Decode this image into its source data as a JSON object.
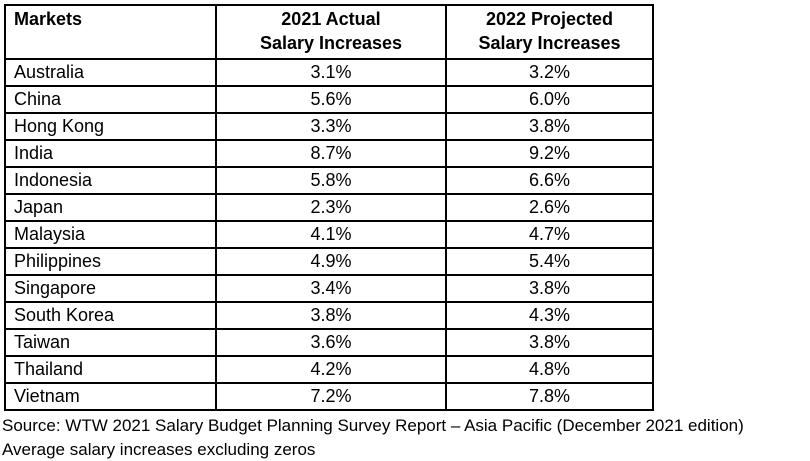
{
  "table": {
    "header": {
      "markets": "Markets",
      "col_2021_line1": "2021 Actual",
      "col_2021_line2": "Salary Increases",
      "col_2022_line1": "2022 Projected",
      "col_2022_line2": "Salary Increases"
    },
    "rows": [
      {
        "market": "Australia",
        "actual_2021": "3.1%",
        "projected_2022": "3.2%"
      },
      {
        "market": "China",
        "actual_2021": "5.6%",
        "projected_2022": "6.0%"
      },
      {
        "market": "Hong Kong",
        "actual_2021": "3.3%",
        "projected_2022": "3.8%"
      },
      {
        "market": "India",
        "actual_2021": "8.7%",
        "projected_2022": "9.2%"
      },
      {
        "market": "Indonesia",
        "actual_2021": "5.8%",
        "projected_2022": "6.6%"
      },
      {
        "market": "Japan",
        "actual_2021": "2.3%",
        "projected_2022": "2.6%"
      },
      {
        "market": "Malaysia",
        "actual_2021": "4.1%",
        "projected_2022": "4.7%"
      },
      {
        "market": "Philippines",
        "actual_2021": "4.9%",
        "projected_2022": "5.4%"
      },
      {
        "market": "Singapore",
        "actual_2021": "3.4%",
        "projected_2022": "3.8%"
      },
      {
        "market": "South Korea",
        "actual_2021": "3.8%",
        "projected_2022": "4.3%"
      },
      {
        "market": "Taiwan",
        "actual_2021": "3.6%",
        "projected_2022": "3.8%"
      },
      {
        "market": "Thailand",
        "actual_2021": "4.2%",
        "projected_2022": "4.8%"
      },
      {
        "market": "Vietnam",
        "actual_2021": "7.2%",
        "projected_2022": "7.8%"
      }
    ]
  },
  "footer": {
    "source_line": "Source: WTW 2021 Salary Budget Planning Survey Report – Asia Pacific (December 2021 edition)",
    "note_line": "Average salary increases excluding zeros"
  },
  "chart_data": {
    "type": "table",
    "title": "",
    "categories": [
      "Australia",
      "China",
      "Hong Kong",
      "India",
      "Indonesia",
      "Japan",
      "Malaysia",
      "Philippines",
      "Singapore",
      "South Korea",
      "Taiwan",
      "Thailand",
      "Vietnam"
    ],
    "series": [
      {
        "name": "2021 Actual Salary Increases",
        "values": [
          3.1,
          5.6,
          3.3,
          8.7,
          5.8,
          2.3,
          4.1,
          4.9,
          3.4,
          3.8,
          3.6,
          4.2,
          7.2
        ]
      },
      {
        "name": "2022 Projected Salary Increases",
        "values": [
          3.2,
          6.0,
          3.8,
          9.2,
          6.6,
          2.6,
          4.7,
          5.4,
          3.8,
          4.3,
          3.8,
          4.8,
          7.8
        ]
      }
    ],
    "unit": "%",
    "columns": [
      "Markets",
      "2021 Actual Salary Increases",
      "2022 Projected Salary Increases"
    ],
    "source": "Source: WTW 2021 Salary Budget Planning Survey Report – Asia Pacific (December 2021 edition)",
    "note": "Average salary increases excluding zeros",
    "colors": {
      "border": "#000000",
      "text": "#000000",
      "background": "#ffffff"
    }
  }
}
